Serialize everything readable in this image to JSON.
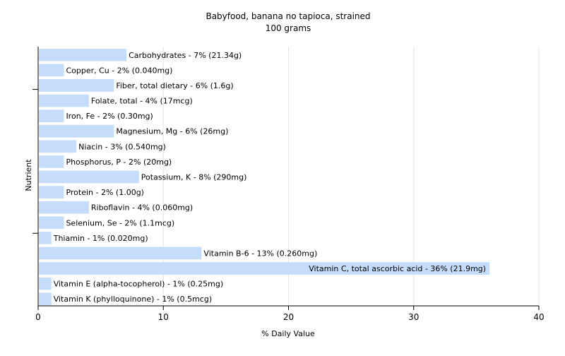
{
  "chart_data": {
    "type": "bar",
    "orientation": "horizontal",
    "title": "Babyfood, banana no tapioca, strained",
    "subtitle": "100 grams",
    "xlabel": "% Daily Value",
    "ylabel": "Nutrient",
    "xlim": [
      0,
      40
    ],
    "xticks": [
      0,
      10,
      20,
      30,
      40
    ],
    "grid": true,
    "colors": {
      "bar": "#c5dcfa",
      "grid": "#e6e6e6",
      "axis": "#000000",
      "text": "#000000"
    },
    "categories": [
      "Carbohydrates",
      "Copper, Cu",
      "Fiber, total dietary",
      "Folate, total",
      "Iron, Fe",
      "Magnesium, Mg",
      "Niacin",
      "Phosphorus, P",
      "Potassium, K",
      "Protein",
      "Riboflavin",
      "Selenium, Se",
      "Thiamin",
      "Vitamin B-6",
      "Vitamin C, total ascorbic acid",
      "Vitamin E (alpha-tocopherol)",
      "Vitamin K (phylloquinone)"
    ],
    "values": [
      7,
      2,
      6,
      4,
      2,
      6,
      3,
      2,
      8,
      2,
      4,
      2,
      1,
      13,
      36,
      1,
      1
    ],
    "labels": [
      "Carbohydrates - 7% (21.34g)",
      "Copper, Cu - 2% (0.040mg)",
      "Fiber, total dietary - 6% (1.6g)",
      "Folate, total - 4% (17mcg)",
      "Iron, Fe - 2% (0.30mg)",
      "Magnesium, Mg - 6% (26mg)",
      "Niacin - 3% (0.540mg)",
      "Phosphorus, P - 2% (20mg)",
      "Potassium, K - 8% (290mg)",
      "Protein - 2% (1.00g)",
      "Riboflavin - 4% (0.060mg)",
      "Selenium, Se - 2% (1.1mcg)",
      "Thiamin - 1% (0.020mg)",
      "Vitamin B-6 - 13% (0.260mg)",
      "Vitamin C, total ascorbic acid - 36% (21.9mg)",
      "Vitamin E (alpha-tocopherol) - 1% (0.25mg)",
      "Vitamin K (phylloquinone) - 1% (0.5mcg)"
    ]
  }
}
